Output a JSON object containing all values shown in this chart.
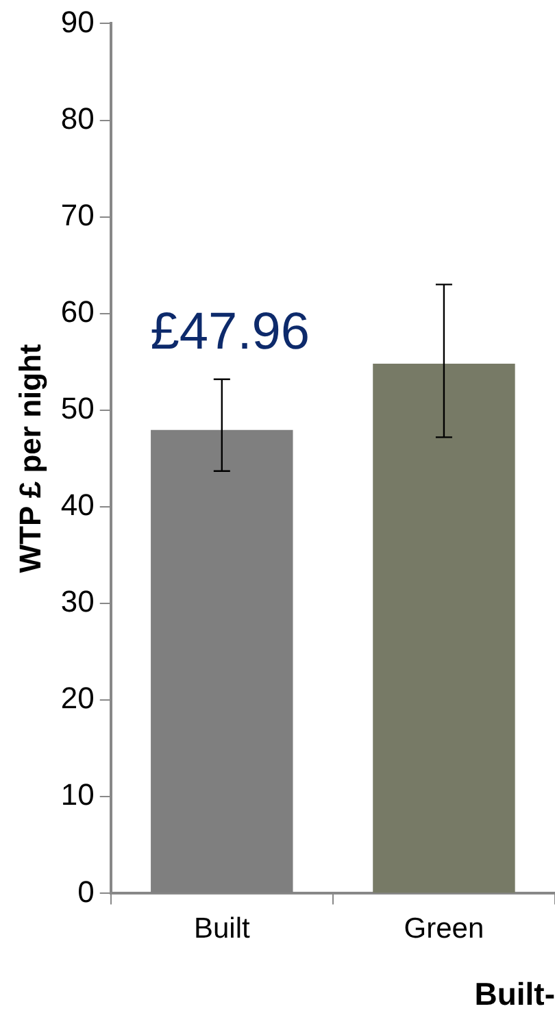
{
  "chart_data": {
    "type": "bar",
    "ylabel": "WTP £ per night",
    "xlabel": "Built-",
    "categories": [
      "Built",
      "Green"
    ],
    "values": [
      47.96,
      54.8
    ],
    "colors": [
      "#7f7f7f",
      "#777a66"
    ],
    "errors": [
      [
        43.7,
        53.2
      ],
      [
        47.2,
        63
      ]
    ],
    "value_labels": [
      "£47.96",
      null
    ],
    "ylim": [
      0,
      90
    ],
    "yticks": [
      0,
      10,
      20,
      30,
      40,
      50,
      60,
      70,
      80,
      90
    ],
    "grid": false,
    "legend": false
  }
}
